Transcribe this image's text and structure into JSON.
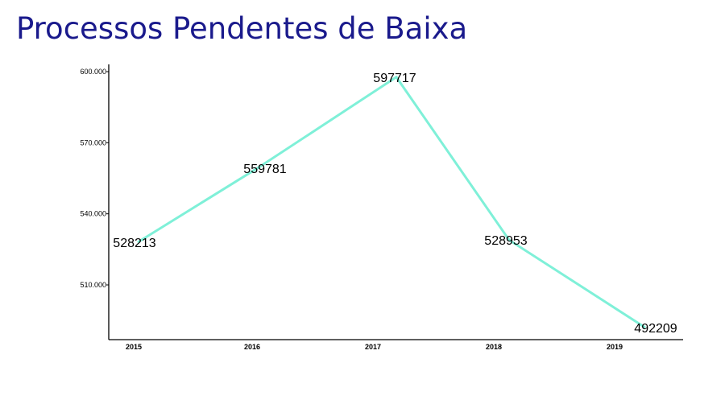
{
  "chart_data": {
    "type": "line",
    "title": "Processos Pendentes de Baixa",
    "xlabel": "",
    "ylabel": "",
    "categories": [
      "2015",
      "2016",
      "2017",
      "2018",
      "2019"
    ],
    "values": [
      528213,
      559781,
      597717,
      528953,
      492209
    ],
    "data_labels": [
      "528213",
      "559781",
      "597717",
      "528953",
      "492209"
    ],
    "y_ticks": [
      510000,
      540000,
      570000,
      600000
    ],
    "y_tick_labels": [
      "510.000",
      "540.000",
      "570.000",
      "600.000"
    ],
    "ylim": [
      486000,
      603000
    ],
    "grid": false,
    "legend": "none",
    "line_color": "#7ff0d8"
  }
}
